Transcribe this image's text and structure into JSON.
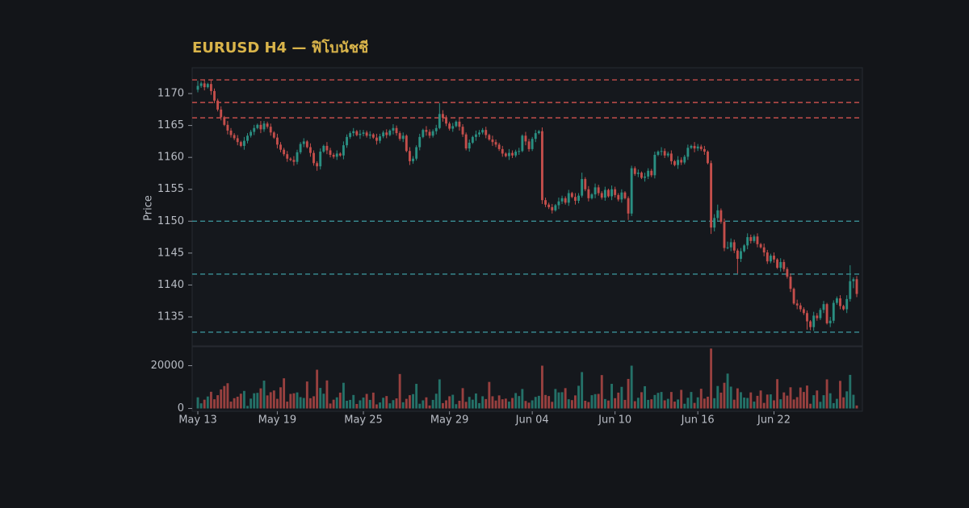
{
  "chart_data": {
    "type": "candlestick",
    "title": "EURUSD H4 — ฟิโบนัชชี",
    "ylabel": "Price",
    "up_color": "#2a8f82",
    "down_color": "#c44e4b",
    "ylim": [
      1130.45,
      1174.05
    ],
    "yticks": [
      1135,
      1140,
      1145,
      1150,
      1155,
      1160,
      1165,
      1170
    ],
    "volume_ylim": [
      -1300,
      28850
    ],
    "volume_yticks": [
      0,
      20000
    ],
    "hlines": [
      {
        "value": 1172.15,
        "color": "#c44e4b"
      },
      {
        "value": 1168.6,
        "color": "#c44e4b"
      },
      {
        "value": 1166.2,
        "color": "#c44e4b"
      },
      {
        "value": 1150.0,
        "color": "#3a8f96"
      },
      {
        "value": 1141.7,
        "color": "#3a8f96"
      },
      {
        "value": 1132.6,
        "color": "#3a8f96"
      }
    ],
    "line_style": "dashed",
    "categories": [
      "May 13",
      null,
      null,
      null,
      null,
      null,
      null,
      null,
      null,
      null,
      null,
      null,
      null,
      null,
      null,
      null,
      null,
      null,
      null,
      null,
      null,
      null,
      null,
      null,
      "May 19",
      null,
      null,
      null,
      null,
      null,
      null,
      null,
      null,
      null,
      null,
      null,
      null,
      null,
      null,
      null,
      null,
      null,
      null,
      null,
      null,
      null,
      null,
      null,
      null,
      null,
      "May 25",
      null,
      null,
      null,
      null,
      null,
      null,
      null,
      null,
      null,
      null,
      null,
      null,
      null,
      null,
      null,
      null,
      null,
      null,
      null,
      null,
      null,
      null,
      null,
      null,
      null,
      "May 29",
      null,
      null,
      null,
      null,
      null,
      null,
      null,
      null,
      null,
      null,
      null,
      null,
      null,
      null,
      null,
      null,
      null,
      null,
      null,
      null,
      null,
      null,
      null,
      null,
      "Jun 04",
      null,
      null,
      null,
      null,
      null,
      null,
      null,
      null,
      null,
      null,
      null,
      null,
      null,
      null,
      null,
      null,
      null,
      null,
      null,
      null,
      null,
      null,
      null,
      null,
      "Jun 10",
      null,
      null,
      null,
      null,
      null,
      null,
      null,
      null,
      null,
      null,
      null,
      null,
      null,
      null,
      null,
      null,
      null,
      null,
      null,
      null,
      null,
      null,
      null,
      null,
      "Jun 16",
      null,
      null,
      null,
      null,
      null,
      null,
      null,
      null,
      null,
      null,
      null,
      null,
      null,
      null,
      null,
      null,
      null,
      null,
      null,
      null,
      null,
      null,
      "Jun 22",
      null,
      null,
      null,
      null,
      null,
      null,
      null,
      null,
      null,
      null,
      null,
      null,
      null,
      null,
      null,
      null,
      null,
      null,
      null,
      null,
      null,
      null,
      null,
      null,
      null
    ],
    "open": [
      1170.6,
      1171.2,
      1171.6,
      1171.0,
      1171.5,
      1170.4,
      1168.9,
      1167.5,
      1166.3,
      1165.1,
      1164.2,
      1163.5,
      1163.0,
      1162.4,
      1161.8,
      1162.6,
      1163.4,
      1164.0,
      1164.6,
      1165.1,
      1164.4,
      1165.3,
      1164.8,
      1163.9,
      1163.1,
      1162.0,
      1161.2,
      1160.5,
      1159.8,
      1159.6,
      1159.3,
      1160.8,
      1162.1,
      1162.5,
      1161.6,
      1160.7,
      1159.1,
      1158.6,
      1160.9,
      1161.8,
      1161.1,
      1160.4,
      1160.1,
      1160.6,
      1160.3,
      1161.9,
      1163.2,
      1163.8,
      1164.1,
      1163.5,
      1163.7,
      1163.9,
      1163.4,
      1163.6,
      1163.1,
      1162.6,
      1163.3,
      1163.9,
      1163.5,
      1164.2,
      1164.6,
      1163.8,
      1162.9,
      1163.4,
      1161.0,
      1159.4,
      1159.8,
      1161.6,
      1163.2,
      1164.3,
      1164.0,
      1163.4,
      1164.1,
      1164.6,
      1166.8,
      1166.2,
      1165.3,
      1164.5,
      1164.9,
      1165.6,
      1164.8,
      1163.6,
      1161.4,
      1162.3,
      1163.2,
      1163.6,
      1163.9,
      1164.3,
      1163.5,
      1162.8,
      1162.4,
      1162.0,
      1161.3,
      1160.6,
      1160.2,
      1160.7,
      1160.3,
      1160.9,
      1161.0,
      1163.4,
      1162.5,
      1161.3,
      1162.9,
      1163.8,
      1164.1,
      1153.3,
      1152.6,
      1152.2,
      1151.7,
      1152.5,
      1153.1,
      1153.6,
      1152.9,
      1154.4,
      1153.8,
      1153.2,
      1154.0,
      1156.6,
      1155.0,
      1153.6,
      1154.2,
      1155.3,
      1154.4,
      1153.7,
      1154.9,
      1153.9,
      1155.0,
      1154.1,
      1153.4,
      1154.5,
      1153.6,
      1151.2,
      1158.3,
      1157.4,
      1157.6,
      1156.8,
      1157.0,
      1157.9,
      1157.2,
      1160.4,
      1160.9,
      1161.0,
      1160.3,
      1160.6,
      1159.4,
      1158.8,
      1159.6,
      1159.2,
      1160.1,
      1161.5,
      1161.8,
      1161.4,
      1161.7,
      1161.3,
      1160.9,
      1159.1,
      1149.0,
      1150.5,
      1151.7,
      1149.9,
      1145.8,
      1145.9,
      1146.7,
      1145.4,
      1144.1,
      1145.3,
      1146.2,
      1147.5,
      1146.9,
      1147.6,
      1146.4,
      1145.9,
      1145.1,
      1143.7,
      1144.6,
      1144.0,
      1142.7,
      1143.6,
      1142.5,
      1141.3,
      1139.4,
      1137.1,
      1136.8,
      1136.2,
      1135.6,
      1134.3,
      1133.4,
      1135.2,
      1134.8,
      1136.1,
      1137.0,
      1134.0,
      1134.4,
      1137.2,
      1137.9,
      1136.7,
      1136.2,
      1137.8,
      1140.6,
      1140.9
    ],
    "high": [
      1172.0,
      1171.9,
      1172.1,
      1171.7,
      1172.1,
      1170.8,
      1169.2,
      1168.0,
      1166.5,
      1165.7,
      1164.6,
      1163.8,
      1163.5,
      1162.6,
      1163.2,
      1163.8,
      1164.3,
      1165.1,
      1165.3,
      1165.7,
      1165.7,
      1165.6,
      1165.3,
      1164.1,
      1163.7,
      1162.4,
      1161.5,
      1161.0,
      1160.0,
      1160.2,
      1161.2,
      1162.4,
      1163.0,
      1162.7,
      1162.2,
      1161.1,
      1159.4,
      1161.4,
      1162.0,
      1162.4,
      1161.5,
      1160.7,
      1161.1,
      1160.8,
      1162.5,
      1163.6,
      1164.1,
      1164.6,
      1164.3,
      1164.3,
      1164.3,
      1164.2,
      1164.1,
      1163.8,
      1163.7,
      1163.7,
      1164.2,
      1164.4,
      1164.4,
      1165.2,
      1165.0,
      1164.1,
      1163.9,
      1163.6,
      1161.6,
      1160.2,
      1161.9,
      1163.7,
      1164.5,
      1164.9,
      1164.4,
      1164.4,
      1165.1,
      1168.5,
      1167.4,
      1166.6,
      1165.6,
      1165.4,
      1165.8,
      1166.2,
      1165.2,
      1163.9,
      1162.8,
      1163.4,
      1164.2,
      1164.3,
      1164.6,
      1164.8,
      1163.7,
      1163.4,
      1162.8,
      1162.3,
      1161.8,
      1160.8,
      1161.3,
      1161.1,
      1161.2,
      1161.5,
      1163.6,
      1164.0,
      1162.9,
      1163.2,
      1164.3,
      1164.3,
      1164.7,
      1153.7,
      1152.9,
      1152.7,
      1152.7,
      1153.7,
      1154.0,
      1153.9,
      1154.9,
      1154.6,
      1154.4,
      1154.4,
      1157.6,
      1156.9,
      1155.5,
      1154.4,
      1155.9,
      1155.7,
      1154.7,
      1155.4,
      1155.1,
      1155.6,
      1155.4,
      1154.4,
      1155.0,
      1154.7,
      1153.9,
      1158.7,
      1158.6,
      1158.1,
      1157.8,
      1157.6,
      1158.3,
      1158.2,
      1160.9,
      1161.1,
      1161.6,
      1161.4,
      1160.9,
      1161.1,
      1159.6,
      1160.2,
      1160.0,
      1160.4,
      1162.0,
      1162.0,
      1162.4,
      1162.1,
      1162.0,
      1161.8,
      1161.1,
      1159.5,
      1151.1,
      1152.6,
      1152.0,
      1150.4,
      1146.8,
      1147.3,
      1147.1,
      1145.7,
      1145.8,
      1146.4,
      1148.1,
      1147.9,
      1147.9,
      1148.1,
      1146.6,
      1146.5,
      1145.5,
      1144.9,
      1145.1,
      1144.2,
      1144.2,
      1144.0,
      1142.8,
      1141.8,
      1139.6,
      1137.7,
      1137.2,
      1136.5,
      1136.0,
      1134.5,
      1135.8,
      1135.6,
      1136.4,
      1137.5,
      1137.2,
      1135.0,
      1137.6,
      1138.2,
      1138.4,
      1136.9,
      1138.4,
      1143.1,
      1141.2,
      1141.4
    ],
    "low": [
      1170.2,
      1170.9,
      1170.5,
      1170.8,
      1169.8,
      1168.5,
      1167.2,
      1165.8,
      1164.9,
      1163.6,
      1163.1,
      1162.7,
      1161.9,
      1161.6,
      1161.2,
      1162.2,
      1163.1,
      1163.5,
      1164.4,
      1163.8,
      1164.0,
      1164.5,
      1163.4,
      1162.9,
      1161.4,
      1160.8,
      1160.2,
      1159.3,
      1159.4,
      1158.7,
      1158.9,
      1160.5,
      1161.6,
      1161.4,
      1160.1,
      1158.7,
      1157.9,
      1158.1,
      1160.7,
      1160.5,
      1160.0,
      1159.8,
      1159.6,
      1160.1,
      1159.7,
      1161.5,
      1162.9,
      1163.3,
      1163.3,
      1162.9,
      1163.3,
      1163.1,
      1162.9,
      1162.9,
      1162.0,
      1162.2,
      1163.0,
      1163.0,
      1163.3,
      1163.6,
      1163.4,
      1162.6,
      1162.4,
      1160.8,
      1158.8,
      1159.0,
      1159.5,
      1161.1,
      1163.0,
      1163.4,
      1163.0,
      1163.1,
      1163.6,
      1164.4,
      1165.6,
      1164.9,
      1164.2,
      1164.0,
      1164.7,
      1164.2,
      1163.2,
      1161.1,
      1160.9,
      1162.1,
      1162.6,
      1163.2,
      1163.6,
      1163.0,
      1162.6,
      1161.8,
      1161.6,
      1161.0,
      1160.1,
      1160.0,
      1159.6,
      1159.9,
      1160.0,
      1160.4,
      1160.8,
      1161.9,
      1160.9,
      1161.0,
      1162.4,
      1163.6,
      1152.7,
      1152.2,
      1151.9,
      1151.2,
      1151.5,
      1151.9,
      1152.7,
      1152.6,
      1152.4,
      1153.6,
      1152.6,
      1152.8,
      1153.7,
      1154.7,
      1153.1,
      1153.4,
      1153.6,
      1154.0,
      1153.4,
      1153.2,
      1153.7,
      1153.3,
      1153.7,
      1153.1,
      1152.9,
      1153.4,
      1150.2,
      1150.8,
      1157.1,
      1156.9,
      1156.6,
      1156.2,
      1156.6,
      1156.9,
      1156.7,
      1160.2,
      1160.3,
      1159.9,
      1160.0,
      1158.9,
      1158.6,
      1158.2,
      1158.8,
      1158.9,
      1159.6,
      1161.3,
      1160.8,
      1161.0,
      1161.0,
      1160.4,
      1158.9,
      1148.0,
      1148.4,
      1150.1,
      1149.6,
      1145.3,
      1145.6,
      1145.3,
      1145.0,
      1141.8,
      1143.6,
      1145.1,
      1145.6,
      1146.5,
      1146.6,
      1145.9,
      1145.7,
      1144.5,
      1143.3,
      1143.4,
      1143.5,
      1142.5,
      1142.1,
      1142.1,
      1141.0,
      1138.9,
      1136.9,
      1136.2,
      1135.8,
      1135.3,
      1133.0,
      1132.9,
      1132.8,
      1134.4,
      1134.5,
      1135.6,
      1133.8,
      1133.4,
      1134.0,
      1136.9,
      1136.2,
      1136.0,
      1135.6,
      1137.4,
      1139.5,
      1138.1
    ],
    "close": [
      1171.2,
      1171.6,
      1171.0,
      1171.5,
      1170.4,
      1168.9,
      1167.5,
      1166.3,
      1165.1,
      1164.2,
      1163.5,
      1163.0,
      1162.4,
      1161.8,
      1162.6,
      1163.4,
      1164.0,
      1164.6,
      1165.1,
      1164.4,
      1165.3,
      1164.8,
      1163.9,
      1163.1,
      1162.0,
      1161.2,
      1160.5,
      1159.8,
      1159.6,
      1159.3,
      1160.8,
      1162.1,
      1162.5,
      1161.6,
      1160.7,
      1159.1,
      1158.6,
      1160.9,
      1161.8,
      1161.1,
      1160.4,
      1160.1,
      1160.6,
      1160.3,
      1161.9,
      1163.2,
      1163.8,
      1164.1,
      1163.5,
      1163.7,
      1163.9,
      1163.4,
      1163.6,
      1163.1,
      1162.6,
      1163.3,
      1163.9,
      1163.5,
      1164.2,
      1164.6,
      1163.8,
      1162.9,
      1163.4,
      1161.0,
      1159.4,
      1159.8,
      1161.6,
      1163.2,
      1164.3,
      1164.0,
      1163.4,
      1164.1,
      1164.6,
      1166.8,
      1166.2,
      1165.3,
      1164.5,
      1164.9,
      1165.6,
      1164.8,
      1163.6,
      1161.4,
      1162.3,
      1163.2,
      1163.6,
      1163.9,
      1164.3,
      1163.5,
      1162.8,
      1162.4,
      1162.0,
      1161.3,
      1160.6,
      1160.2,
      1160.7,
      1160.3,
      1160.9,
      1161.0,
      1163.4,
      1162.5,
      1161.3,
      1162.9,
      1163.8,
      1164.1,
      1153.3,
      1152.6,
      1152.2,
      1151.7,
      1152.5,
      1153.1,
      1153.6,
      1152.9,
      1154.4,
      1153.8,
      1153.2,
      1154.0,
      1156.6,
      1155.0,
      1153.6,
      1154.2,
      1155.3,
      1154.4,
      1153.7,
      1154.9,
      1153.9,
      1155.0,
      1154.1,
      1153.4,
      1154.5,
      1153.6,
      1151.2,
      1158.3,
      1157.4,
      1157.6,
      1156.8,
      1157.0,
      1157.9,
      1157.2,
      1160.4,
      1160.9,
      1161.0,
      1160.3,
      1160.6,
      1159.4,
      1158.8,
      1159.6,
      1159.2,
      1160.1,
      1161.5,
      1161.8,
      1161.4,
      1161.7,
      1161.3,
      1160.9,
      1159.1,
      1149.0,
      1150.5,
      1151.7,
      1149.9,
      1145.8,
      1145.9,
      1146.7,
      1145.4,
      1144.1,
      1145.3,
      1146.2,
      1147.5,
      1146.9,
      1147.6,
      1146.4,
      1145.9,
      1145.1,
      1143.7,
      1144.6,
      1144.0,
      1142.7,
      1143.6,
      1142.5,
      1141.3,
      1139.4,
      1137.1,
      1136.8,
      1136.2,
      1135.6,
      1134.3,
      1133.4,
      1135.2,
      1134.8,
      1136.1,
      1137.0,
      1134.0,
      1134.4,
      1137.2,
      1137.9,
      1136.7,
      1136.2,
      1137.8,
      1140.6,
      1140.9,
      1138.6
    ],
    "volume": [
      5200,
      2400,
      4100,
      5600,
      7800,
      4300,
      6200,
      8900,
      10500,
      11800,
      3200,
      4800,
      5500,
      6900,
      8200,
      1200,
      4600,
      7100,
      7300,
      9400,
      13000,
      6100,
      7600,
      8400,
      4500,
      9900,
      14100,
      3200,
      6800,
      7100,
      7500,
      5300,
      4900,
      12600,
      4800,
      5700,
      18100,
      9600,
      6900,
      13100,
      2300,
      4100,
      5200,
      7400,
      12000,
      3600,
      4000,
      6300,
      2100,
      3800,
      5100,
      6800,
      4000,
      7400,
      1900,
      2800,
      5000,
      5800,
      2400,
      3900,
      4700,
      16100,
      2900,
      4500,
      6200,
      6700,
      11500,
      2200,
      3800,
      5200,
      1400,
      4000,
      6900,
      13600,
      2500,
      3800,
      5700,
      6400,
      2000,
      3600,
      9500,
      3100,
      5400,
      4100,
      7000,
      2500,
      5700,
      4400,
      12400,
      5700,
      3700,
      6100,
      4300,
      4600,
      3200,
      4900,
      7200,
      5800,
      9100,
      3500,
      2700,
      3800,
      5400,
      5900,
      20000,
      6300,
      5800,
      3100,
      9100,
      7500,
      7600,
      9500,
      4300,
      3900,
      6100,
      10600,
      17000,
      3600,
      3000,
      6200,
      6700,
      6800,
      15600,
      4400,
      3700,
      11500,
      4800,
      7400,
      10100,
      4000,
      13800,
      20000,
      3400,
      5000,
      7600,
      10400,
      4000,
      4300,
      6300,
      7300,
      7700,
      3800,
      4500,
      7700,
      3200,
      4200,
      8700,
      2200,
      5000,
      7700,
      2600,
      5200,
      9200,
      4600,
      5500,
      28000,
      4800,
      10500,
      7400,
      12000,
      16300,
      10200,
      4100,
      9400,
      7600,
      5100,
      4900,
      7500,
      3200,
      5900,
      8400,
      2600,
      6500,
      6600,
      3800,
      13700,
      4300,
      7500,
      6000,
      9900,
      4200,
      5300,
      9800,
      7700,
      10700,
      2200,
      6200,
      8400,
      3100,
      6200,
      13600,
      7100,
      2500,
      4500,
      12900,
      5200,
      8000,
      15700,
      6400,
      1400
    ]
  }
}
